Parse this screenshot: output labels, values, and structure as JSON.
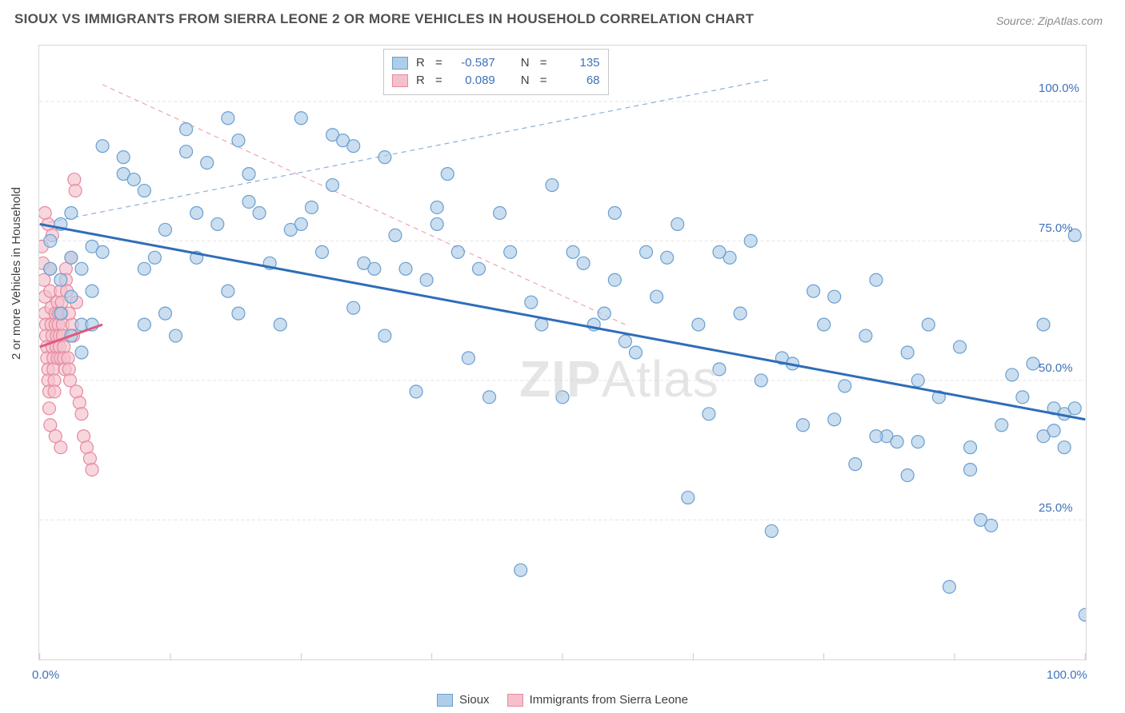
{
  "title": "SIOUX VS IMMIGRANTS FROM SIERRA LEONE 2 OR MORE VEHICLES IN HOUSEHOLD CORRELATION CHART",
  "source": "Source: ZipAtlas.com",
  "y_axis_label": "2 or more Vehicles in Household",
  "watermark_bold": "ZIP",
  "watermark_light": "Atlas",
  "chart": {
    "type": "scatter",
    "xlim": [
      0,
      100
    ],
    "ylim": [
      0,
      110
    ],
    "x_ticks": [
      0,
      12.5,
      25,
      37.5,
      50,
      62.5,
      75,
      87.5,
      100
    ],
    "x_tick_labels": {
      "0": "0.0%",
      "100": "100.0%"
    },
    "y_ticks": [
      25,
      50,
      75,
      100
    ],
    "y_tick_labels": {
      "25": "25.0%",
      "50": "50.0%",
      "75": "75.0%",
      "100": "100.0%"
    },
    "grid_color": "#e4e4e4",
    "grid_dash": "4,3",
    "background": "#ffffff",
    "marker_radius": 8,
    "marker_stroke_width": 1.2,
    "trend_line_width": 3,
    "trend_dash_line_width": 1.2
  },
  "series": [
    {
      "name": "Sioux",
      "color_fill": "#aecde8",
      "color_stroke": "#6a9fd0",
      "line_color": "#2f6db8",
      "r_value": "-0.587",
      "n_value": "135",
      "trend": {
        "x1": 0,
        "y1": 78,
        "x2": 100,
        "y2": 43
      },
      "trend_dash": {
        "x1": 0,
        "y1": 78,
        "x2": 70,
        "y2": 104
      },
      "points": [
        [
          1,
          75
        ],
        [
          1,
          70
        ],
        [
          2,
          68
        ],
        [
          2,
          78
        ],
        [
          2,
          62
        ],
        [
          3,
          72
        ],
        [
          3,
          65
        ],
        [
          3,
          58
        ],
        [
          3,
          80
        ],
        [
          4,
          60
        ],
        [
          4,
          70
        ],
        [
          4,
          55
        ],
        [
          5,
          74
        ],
        [
          5,
          66
        ],
        [
          5,
          60
        ],
        [
          6,
          73
        ],
        [
          6,
          92
        ],
        [
          8,
          90
        ],
        [
          8,
          87
        ],
        [
          9,
          86
        ],
        [
          10,
          84
        ],
        [
          10,
          60
        ],
        [
          10,
          70
        ],
        [
          11,
          72
        ],
        [
          12,
          77
        ],
        [
          12,
          62
        ],
        [
          13,
          58
        ],
        [
          14,
          95
        ],
        [
          14,
          91
        ],
        [
          15,
          80
        ],
        [
          15,
          72
        ],
        [
          16,
          89
        ],
        [
          17,
          78
        ],
        [
          18,
          97
        ],
        [
          18,
          66
        ],
        [
          19,
          62
        ],
        [
          19,
          93
        ],
        [
          20,
          87
        ],
        [
          20,
          82
        ],
        [
          21,
          80
        ],
        [
          22,
          71
        ],
        [
          23,
          60
        ],
        [
          24,
          77
        ],
        [
          25,
          97
        ],
        [
          25,
          78
        ],
        [
          26,
          81
        ],
        [
          27,
          73
        ],
        [
          28,
          94
        ],
        [
          28,
          85
        ],
        [
          29,
          93
        ],
        [
          30,
          92
        ],
        [
          30,
          63
        ],
        [
          31,
          71
        ],
        [
          32,
          70
        ],
        [
          33,
          90
        ],
        [
          33,
          58
        ],
        [
          34,
          76
        ],
        [
          35,
          70
        ],
        [
          36,
          48
        ],
        [
          37,
          68
        ],
        [
          38,
          81
        ],
        [
          38,
          78
        ],
        [
          39,
          87
        ],
        [
          40,
          73
        ],
        [
          41,
          54
        ],
        [
          42,
          70
        ],
        [
          43,
          47
        ],
        [
          44,
          80
        ],
        [
          45,
          73
        ],
        [
          46,
          16
        ],
        [
          47,
          64
        ],
        [
          48,
          60
        ],
        [
          49,
          85
        ],
        [
          50,
          47
        ],
        [
          51,
          73
        ],
        [
          52,
          71
        ],
        [
          53,
          60
        ],
        [
          54,
          62
        ],
        [
          55,
          80
        ],
        [
          56,
          57
        ],
        [
          57,
          55
        ],
        [
          58,
          73
        ],
        [
          59,
          65
        ],
        [
          60,
          72
        ],
        [
          61,
          78
        ],
        [
          62,
          29
        ],
        [
          63,
          60
        ],
        [
          64,
          44
        ],
        [
          65,
          52
        ],
        [
          66,
          72
        ],
        [
          67,
          62
        ],
        [
          68,
          75
        ],
        [
          69,
          50
        ],
        [
          70,
          23
        ],
        [
          71,
          54
        ],
        [
          72,
          53
        ],
        [
          73,
          42
        ],
        [
          74,
          66
        ],
        [
          75,
          60
        ],
        [
          76,
          43
        ],
        [
          77,
          49
        ],
        [
          78,
          35
        ],
        [
          79,
          58
        ],
        [
          80,
          68
        ],
        [
          81,
          40
        ],
        [
          82,
          39
        ],
        [
          83,
          55
        ],
        [
          84,
          50
        ],
        [
          85,
          60
        ],
        [
          86,
          47
        ],
        [
          87,
          13
        ],
        [
          88,
          56
        ],
        [
          89,
          38
        ],
        [
          90,
          25
        ],
        [
          91,
          24
        ],
        [
          92,
          42
        ],
        [
          93,
          51
        ],
        [
          94,
          47
        ],
        [
          95,
          53
        ],
        [
          96,
          40
        ],
        [
          96,
          60
        ],
        [
          97,
          41
        ],
        [
          97,
          45
        ],
        [
          98,
          38
        ],
        [
          98,
          44
        ],
        [
          99,
          76
        ],
        [
          99,
          45
        ],
        [
          100,
          8
        ],
        [
          89,
          34
        ],
        [
          65,
          73
        ],
        [
          84,
          39
        ],
        [
          83,
          33
        ],
        [
          80,
          40
        ],
        [
          76,
          65
        ],
        [
          55,
          68
        ]
      ]
    },
    {
      "name": "Immigrants from Sierra Leone",
      "color_fill": "#f5c0cb",
      "color_stroke": "#e58aa0",
      "line_color": "#e05a7c",
      "r_value": "0.089",
      "n_value": "68",
      "trend": {
        "x1": 0,
        "y1": 56,
        "x2": 6,
        "y2": 60
      },
      "trend_dash": {
        "x1": 6,
        "y2": 60,
        "x2": 56,
        "y1": 103
      },
      "points": [
        [
          0.2,
          74
        ],
        [
          0.3,
          71
        ],
        [
          0.4,
          68
        ],
        [
          0.5,
          65
        ],
        [
          0.5,
          62
        ],
        [
          0.6,
          60
        ],
        [
          0.6,
          58
        ],
        [
          0.7,
          56
        ],
        [
          0.7,
          54
        ],
        [
          0.8,
          52
        ],
        [
          0.8,
          50
        ],
        [
          0.9,
          48
        ],
        [
          0.9,
          45
        ],
        [
          1.0,
          70
        ],
        [
          1.0,
          66
        ],
        [
          1.1,
          63
        ],
        [
          1.1,
          60
        ],
        [
          1.2,
          58
        ],
        [
          1.2,
          56
        ],
        [
          1.3,
          54
        ],
        [
          1.3,
          52
        ],
        [
          1.4,
          50
        ],
        [
          1.4,
          48
        ],
        [
          1.5,
          62
        ],
        [
          1.5,
          60
        ],
        [
          1.6,
          58
        ],
        [
          1.6,
          56
        ],
        [
          1.7,
          54
        ],
        [
          1.7,
          64
        ],
        [
          1.8,
          62
        ],
        [
          1.8,
          60
        ],
        [
          1.9,
          58
        ],
        [
          1.9,
          56
        ],
        [
          2.0,
          54
        ],
        [
          2.0,
          66
        ],
        [
          2.1,
          64
        ],
        [
          2.1,
          62
        ],
        [
          2.2,
          60
        ],
        [
          2.2,
          58
        ],
        [
          2.3,
          56
        ],
        [
          2.3,
          54
        ],
        [
          2.4,
          52
        ],
        [
          2.5,
          70
        ],
        [
          2.5,
          68
        ],
        [
          2.6,
          66
        ],
        [
          2.7,
          54
        ],
        [
          2.8,
          52
        ],
        [
          2.9,
          50
        ],
        [
          3.0,
          72
        ],
        [
          3.1,
          60
        ],
        [
          3.2,
          58
        ],
        [
          3.3,
          86
        ],
        [
          3.4,
          84
        ],
        [
          3.5,
          48
        ],
        [
          3.8,
          46
        ],
        [
          4.0,
          44
        ],
        [
          4.2,
          40
        ],
        [
          4.5,
          38
        ],
        [
          4.8,
          36
        ],
        [
          5.0,
          34
        ],
        [
          1.0,
          42
        ],
        [
          1.5,
          40
        ],
        [
          2.0,
          38
        ],
        [
          0.8,
          78
        ],
        [
          1.2,
          76
        ],
        [
          0.5,
          80
        ],
        [
          2.8,
          62
        ],
        [
          3.5,
          64
        ]
      ]
    }
  ],
  "stats_labels": {
    "r": "R",
    "eq": "=",
    "n": "N"
  },
  "legend": [
    {
      "label": "Sioux",
      "fill": "#aecde8",
      "stroke": "#6a9fd0"
    },
    {
      "label": "Immigrants from Sierra Leone",
      "fill": "#f5c0cb",
      "stroke": "#e58aa0"
    }
  ]
}
